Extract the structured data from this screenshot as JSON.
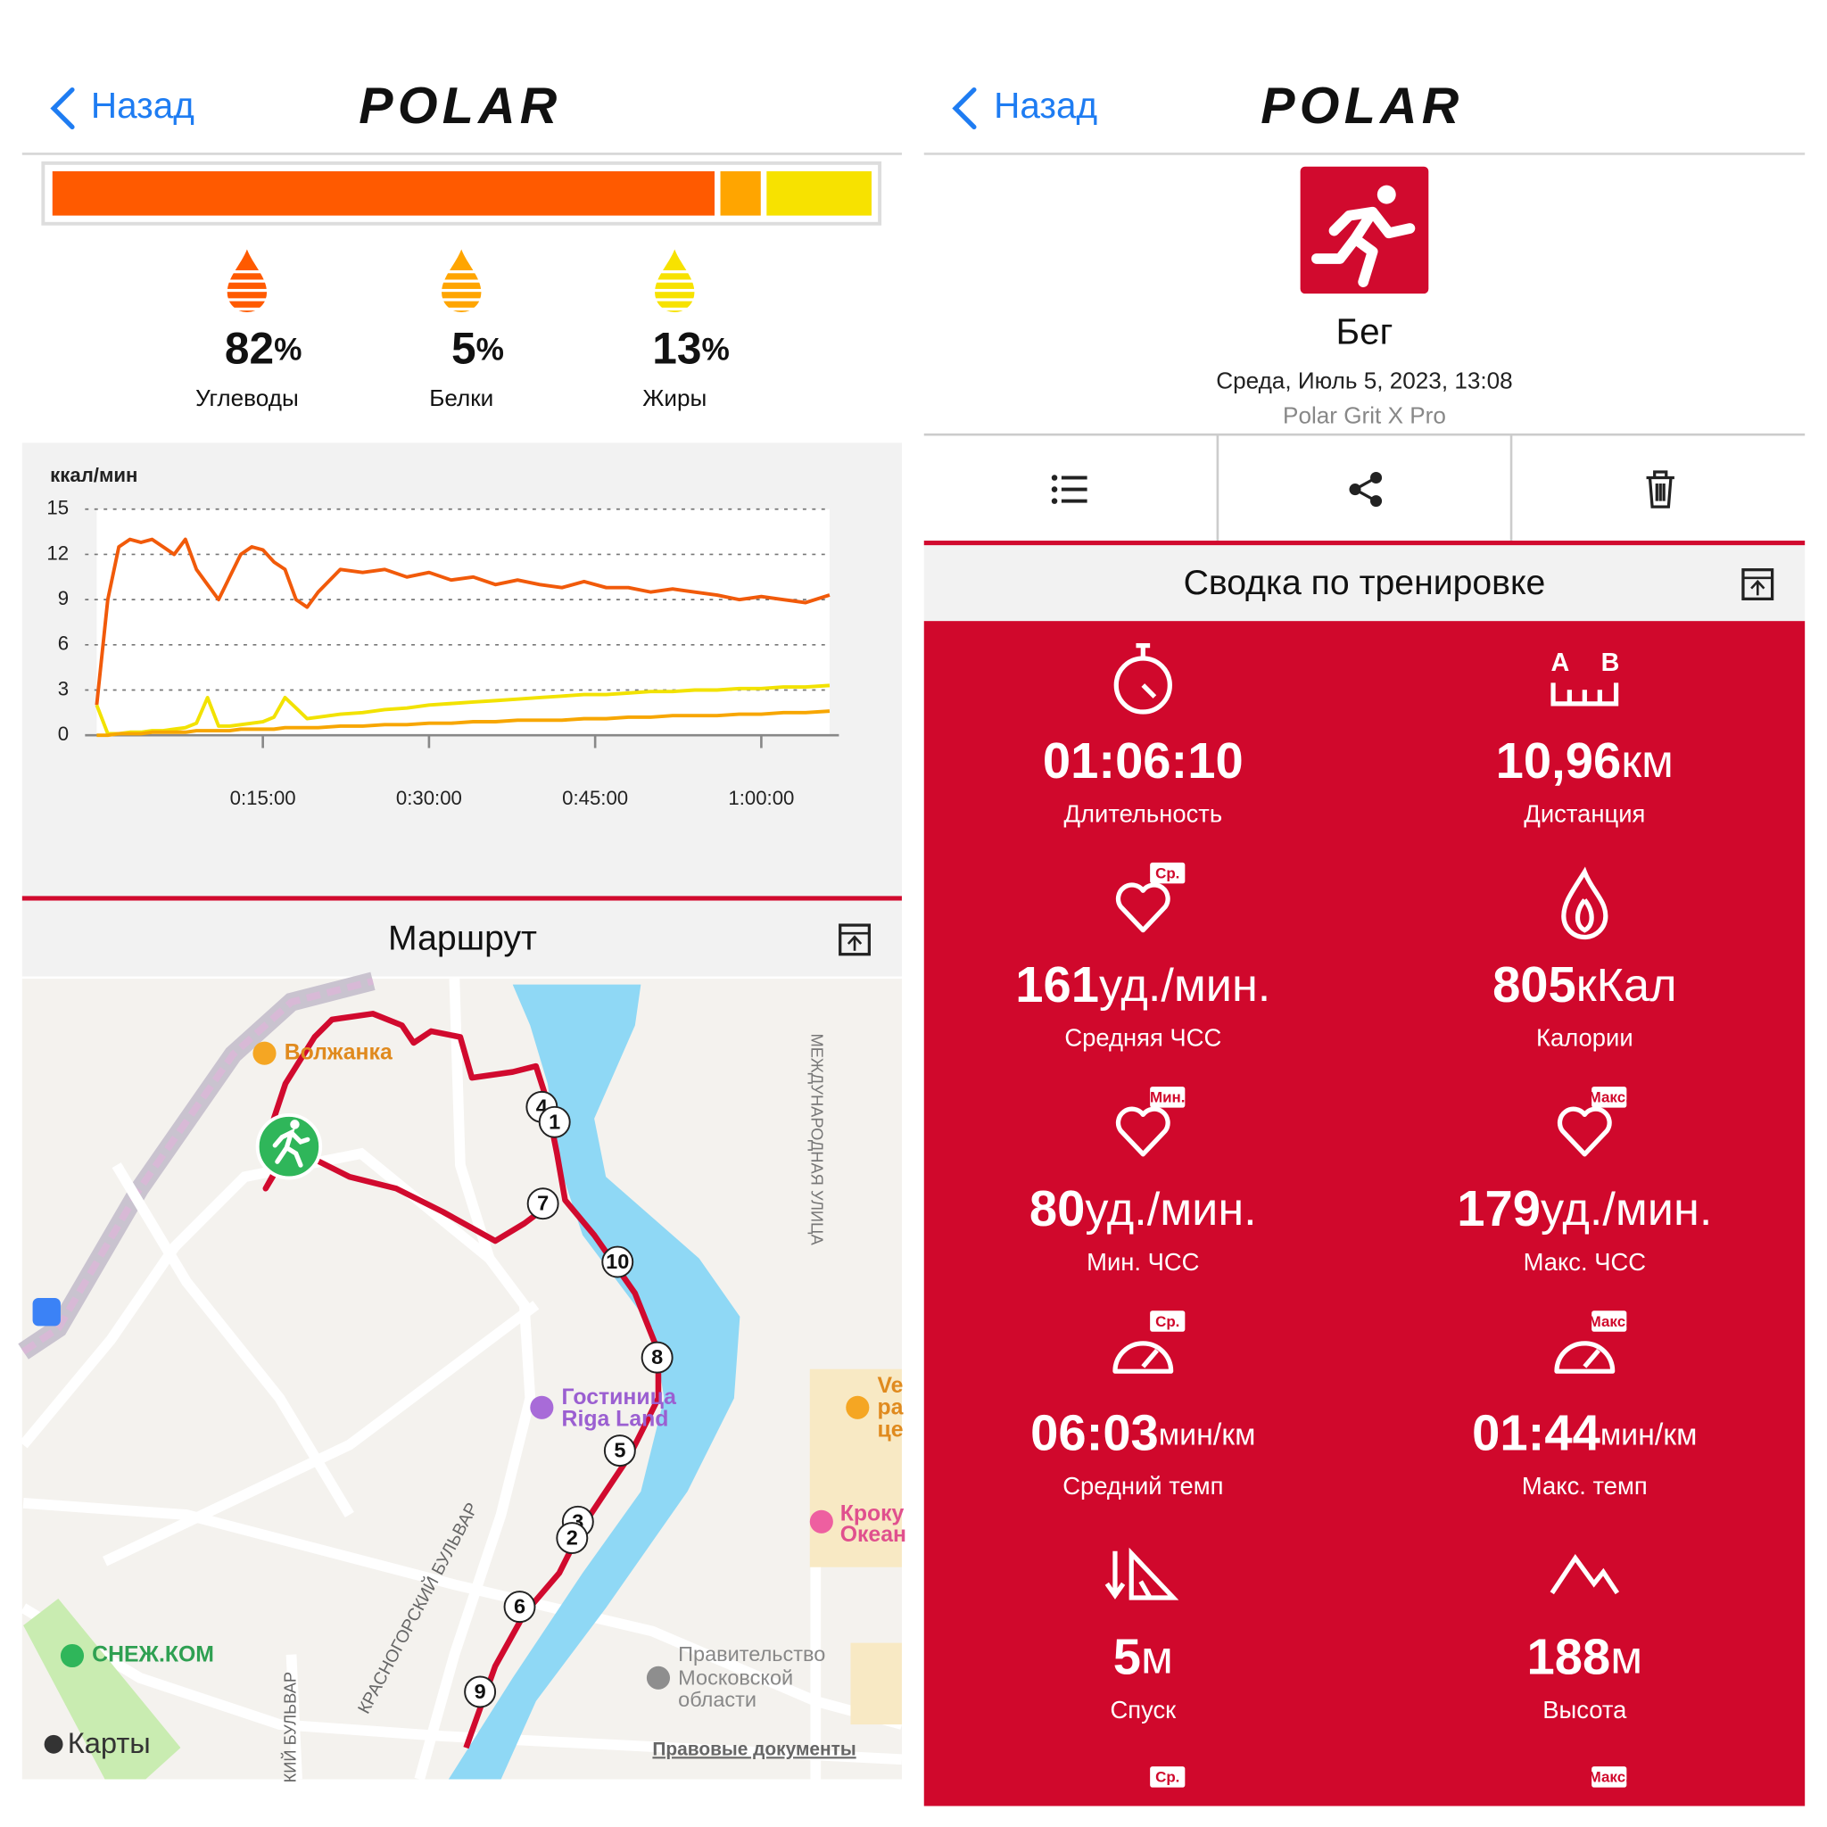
{
  "left": {
    "header": {
      "back": "Назад",
      "logo": "POLAR"
    },
    "macros": {
      "unit": "%",
      "items": [
        {
          "value": 82,
          "label": "Углеводы",
          "color": "#ff5a00"
        },
        {
          "value": 5,
          "label": "Белки",
          "color": "#ffa500"
        },
        {
          "value": 13,
          "label": "Жиры",
          "color": "#f7e200"
        }
      ]
    },
    "chart_data": {
      "type": "line",
      "y_label": "ккал/мин",
      "ylim": [
        0,
        15
      ],
      "yticks": [
        0,
        3,
        6,
        9,
        12,
        15
      ],
      "xlim": [
        0,
        3970
      ],
      "xticks": [
        {
          "value": 900,
          "label": "0:15:00"
        },
        {
          "value": 1800,
          "label": "0:30:00"
        },
        {
          "value": 2700,
          "label": "0:45:00"
        },
        {
          "value": 3600,
          "label": "1:00:00"
        }
      ],
      "grid": true,
      "x": [
        0,
        60,
        120,
        180,
        240,
        300,
        360,
        420,
        480,
        540,
        600,
        660,
        720,
        780,
        840,
        900,
        960,
        1020,
        1080,
        1140,
        1200,
        1320,
        1440,
        1560,
        1680,
        1800,
        1920,
        2040,
        2160,
        2280,
        2400,
        2520,
        2640,
        2760,
        2880,
        3000,
        3120,
        3240,
        3360,
        3480,
        3600,
        3720,
        3840,
        3970
      ],
      "series": [
        {
          "color": "#f15a0a",
          "values": [
            2,
            9,
            12.5,
            13,
            12.8,
            13,
            12.5,
            12,
            13,
            11,
            10,
            9,
            10.5,
            12,
            12.5,
            12.3,
            11.5,
            11,
            9,
            8.5,
            9.5,
            11,
            10.8,
            11,
            10.5,
            10.8,
            10.3,
            10.5,
            10,
            10.3,
            10,
            9.8,
            10.2,
            9.8,
            9.8,
            9.5,
            9.7,
            9.5,
            9.3,
            9,
            9.2,
            9,
            8.8,
            9.3
          ]
        },
        {
          "color": "#f2e200",
          "values": [
            2,
            0.1,
            0.1,
            0.2,
            0.2,
            0.3,
            0.3,
            0.4,
            0.5,
            0.8,
            2.5,
            0.6,
            0.6,
            0.7,
            0.8,
            0.9,
            1.2,
            2.5,
            1.8,
            1.1,
            1.2,
            1.4,
            1.5,
            1.7,
            1.8,
            2,
            2.1,
            2.2,
            2.3,
            2.4,
            2.5,
            2.6,
            2.7,
            2.7,
            2.8,
            2.9,
            2.9,
            3,
            3,
            3.1,
            3.1,
            3.2,
            3.2,
            3.3
          ]
        },
        {
          "color": "#f7a600",
          "values": [
            0,
            0,
            0.1,
            0.1,
            0.1,
            0.2,
            0.2,
            0.2,
            0.2,
            0.3,
            0.3,
            0.3,
            0.3,
            0.4,
            0.4,
            0.4,
            0.4,
            0.5,
            0.5,
            0.5,
            0.5,
            0.6,
            0.6,
            0.7,
            0.7,
            0.8,
            0.8,
            0.9,
            0.9,
            1,
            1,
            1,
            1.1,
            1.1,
            1.2,
            1.2,
            1.3,
            1.3,
            1.3,
            1.4,
            1.4,
            1.5,
            1.5,
            1.6
          ]
        }
      ]
    },
    "map": {
      "title": "Маршрут",
      "places": {
        "volzhanka": "Волжанка",
        "hotel1": "Гостиница",
        "hotel2": "Riga Land",
        "street": "МЕЖДУНАРОДНАЯ УЛИЦА",
        "boulevard": "КРАСНОГОРСКИЙ БУЛЬВАР",
        "boulevard2": "КИЙ БУЛЬВАР",
        "snezh": "СНЕЖ.КОМ",
        "gov1": "Правительство",
        "gov2": "Московской",
        "gov3": "области",
        "ve1": "Ve",
        "ve2": "ра",
        "ve3": "це",
        "croc1": "Кроку",
        "croc2": "Океан"
      },
      "markers": [
        4,
        1,
        7,
        10,
        8,
        5,
        3,
        2,
        6,
        9
      ],
      "maps_brand": "Карты",
      "legal": "Правовые документы"
    }
  },
  "right": {
    "header": {
      "back": "Назад",
      "logo": "POLAR"
    },
    "sport": "Бег",
    "date": "Среда, Июль 5, 2023, 13:08",
    "device": "Polar Grit X Pro",
    "summary_title": "Сводка по тренировке",
    "stats": [
      {
        "value": "01:06:10",
        "label": "Длительность"
      },
      {
        "value": "10,96",
        "unit": "км",
        "label": "Дистанция",
        "badges": [
          "A",
          "B"
        ]
      },
      {
        "value": "161",
        "unit": "уд./мин.",
        "label": "Средняя ЧСС",
        "badge": "Ср."
      },
      {
        "value": "805",
        "unit": "кКал",
        "label": "Калории"
      },
      {
        "value": "80",
        "unit": "уд./мин.",
        "label": "Мин. ЧСС",
        "badge": "Мин."
      },
      {
        "value": "179",
        "unit": "уд./мин.",
        "label": "Макс. ЧСС",
        "badge": "Макс."
      },
      {
        "value": "06:03",
        "unit": "мин/км",
        "label": "Средний темп",
        "badge": "Ср."
      },
      {
        "value": "01:44",
        "unit": "мин/км",
        "label": "Макс. темп",
        "badge": "Макс."
      },
      {
        "value": "5",
        "unit": "м",
        "label": "Спуск"
      },
      {
        "value": "188",
        "unit": "м",
        "label": "Высота"
      }
    ],
    "partial_badges": [
      "Ср.",
      "Макс."
    ]
  }
}
